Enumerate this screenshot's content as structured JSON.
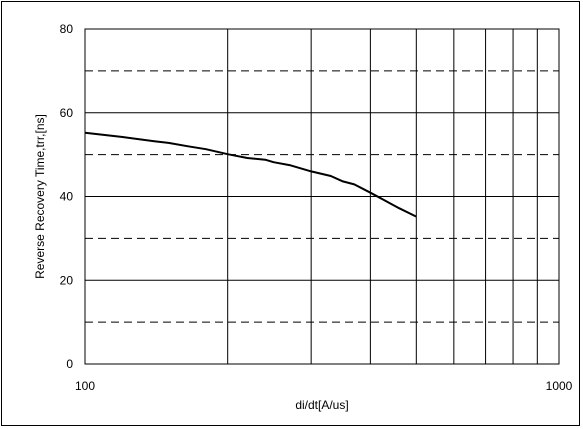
{
  "chart_data": {
    "type": "line",
    "title": "",
    "xlabel": "di/dt[A/us]",
    "ylabel": "Reverse Recovery Time,trr,[ns]",
    "xscale": "log",
    "xlim": [
      100,
      1000
    ],
    "ylim": [
      0,
      80
    ],
    "x_tick_labels": [
      "100",
      "1000"
    ],
    "y_ticks": [
      0,
      20,
      40,
      60,
      80
    ],
    "y_tick_labels": [
      "0",
      "20",
      "40",
      "60",
      "80"
    ],
    "y_dashed_gridlines": [
      10,
      30,
      50,
      70
    ],
    "grid": true,
    "series": [
      {
        "color": "#000000",
        "x": [
          100,
          120,
          140,
          150,
          165,
          180,
          200,
          220,
          240,
          250,
          270,
          300,
          330,
          350,
          370,
          400,
          430,
          460,
          500
        ],
        "y": [
          55.2,
          54.2,
          53.2,
          52.8,
          52.0,
          51.3,
          50.1,
          49.2,
          48.8,
          48.2,
          47.5,
          46.0,
          44.9,
          43.6,
          42.9,
          40.9,
          39.0,
          37.2,
          35.2
        ]
      }
    ]
  }
}
